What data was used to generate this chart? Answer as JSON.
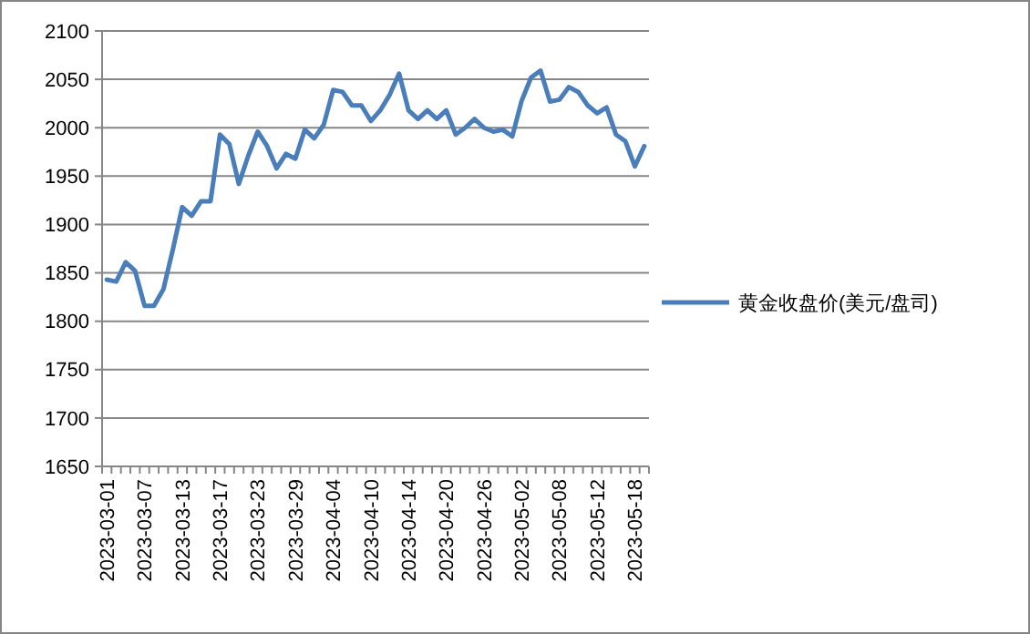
{
  "chart_data": {
    "type": "line",
    "categories": [
      "2023-03-01",
      null,
      null,
      null,
      "2023-03-07",
      null,
      null,
      null,
      "2023-03-13",
      null,
      null,
      null,
      "2023-03-17",
      null,
      null,
      null,
      "2023-03-23",
      null,
      null,
      null,
      "2023-03-29",
      null,
      null,
      null,
      "2023-04-04",
      null,
      null,
      null,
      "2023-04-10",
      null,
      null,
      null,
      "2023-04-14",
      null,
      null,
      null,
      "2023-04-20",
      null,
      null,
      null,
      "2023-04-26",
      null,
      null,
      null,
      "2023-05-02",
      null,
      null,
      null,
      "2023-05-08",
      null,
      null,
      null,
      "2023-05-12",
      null,
      null,
      null,
      "2023-05-18",
      null
    ],
    "series": [
      {
        "name": "黄金收盘价(美元/盘司)",
        "color": "#4a7ebb",
        "values": [
          1843,
          1841,
          1861,
          1852,
          1816,
          1816,
          1833,
          1874,
          1918,
          1909,
          1924,
          1924,
          1993,
          1983,
          1942,
          1971,
          1996,
          1981,
          1958,
          1973,
          1968,
          1998,
          1989,
          2003,
          2039,
          2037,
          2023,
          2023,
          2007,
          2018,
          2034,
          2056,
          2018,
          2009,
          2018,
          2009,
          2018,
          1993,
          2000,
          2009,
          2000,
          1996,
          1998,
          1991,
          2028,
          2052,
          2059,
          2027,
          2029,
          2042,
          2037,
          2023,
          2015,
          2021,
          1993,
          1986,
          1960,
          1981
        ]
      }
    ],
    "ylim": [
      1650,
      2100
    ],
    "yticks": [
      1650,
      1700,
      1750,
      1800,
      1850,
      1900,
      1950,
      2000,
      2050,
      2100
    ],
    "grid": "y",
    "legend": "right",
    "marker": "none",
    "line_style": "solid"
  }
}
